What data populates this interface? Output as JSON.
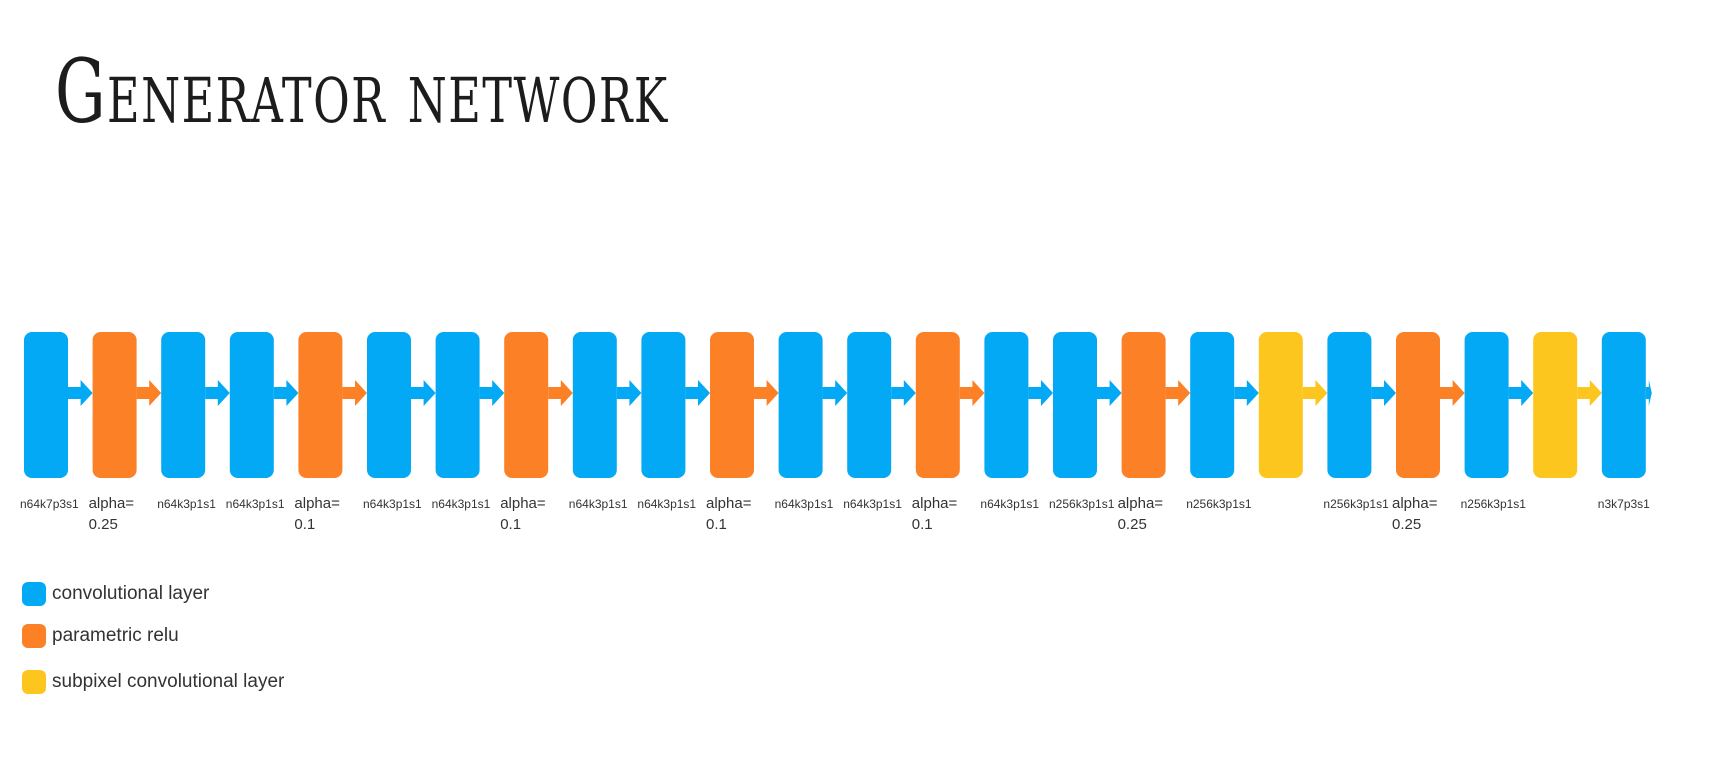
{
  "title": "Generator network",
  "colors": {
    "conv": "#03a9f4",
    "prelu": "#fc8026",
    "subpixel": "#fcc61e"
  },
  "legend": [
    {
      "type": "conv",
      "label": "convolutional layer"
    },
    {
      "type": "prelu",
      "label": "parametric relu"
    },
    {
      "type": "subpixel",
      "label": "subpixel convolutional layer"
    }
  ],
  "layers": [
    {
      "type": "conv",
      "label": [
        "n64k7p3s1"
      ]
    },
    {
      "type": "prelu",
      "label": [
        "alpha=",
        "0.25"
      ]
    },
    {
      "type": "conv",
      "label": [
        "n64k3p1s1"
      ]
    },
    {
      "type": "conv",
      "label": [
        "n64k3p1s1"
      ]
    },
    {
      "type": "prelu",
      "label": [
        "alpha=",
        "0.1"
      ]
    },
    {
      "type": "conv",
      "label": [
        "n64k3p1s1"
      ]
    },
    {
      "type": "conv",
      "label": [
        "n64k3p1s1"
      ]
    },
    {
      "type": "prelu",
      "label": [
        "alpha=",
        "0.1"
      ]
    },
    {
      "type": "conv",
      "label": [
        "n64k3p1s1"
      ]
    },
    {
      "type": "conv",
      "label": [
        "n64k3p1s1"
      ]
    },
    {
      "type": "prelu",
      "label": [
        "alpha=",
        "0.1"
      ]
    },
    {
      "type": "conv",
      "label": [
        "n64k3p1s1"
      ]
    },
    {
      "type": "conv",
      "label": [
        "n64k3p1s1"
      ]
    },
    {
      "type": "prelu",
      "label": [
        "alpha=",
        "0.1"
      ]
    },
    {
      "type": "conv",
      "label": [
        "n64k3p1s1"
      ]
    },
    {
      "type": "conv",
      "label": [
        "n256k3p1s1"
      ]
    },
    {
      "type": "prelu",
      "label": [
        "alpha=",
        "0.25"
      ]
    },
    {
      "type": "conv",
      "label": [
        "n256k3p1s1"
      ]
    },
    {
      "type": "subpixel",
      "label": []
    },
    {
      "type": "conv",
      "label": [
        "n256k3p1s1"
      ]
    },
    {
      "type": "prelu",
      "label": [
        "alpha=",
        "0.25"
      ]
    },
    {
      "type": "conv",
      "label": [
        "n256k3p1s1"
      ]
    },
    {
      "type": "subpixel",
      "label": []
    },
    {
      "type": "conv",
      "label": [
        "n3k7p3s1"
      ]
    }
  ]
}
